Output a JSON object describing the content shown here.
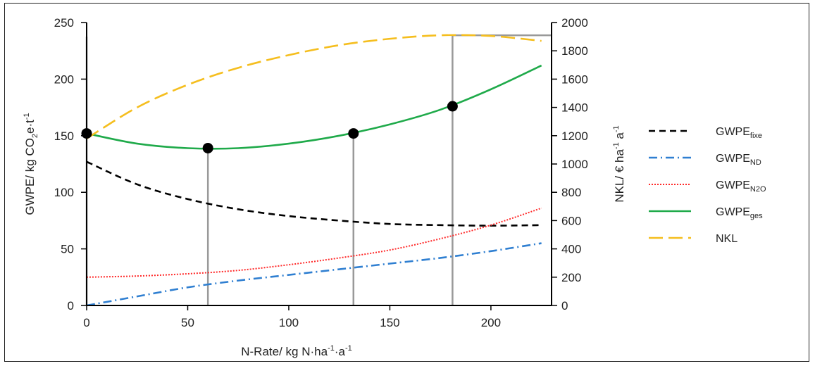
{
  "chart_data": {
    "type": "line",
    "xlabel": "N-Rate/ kg N·ha-1·a-1",
    "ylabel_left": "GWPE/ kg CO2e·t-1",
    "ylabel_right": "NKL/ € ha-1 a-1",
    "xlim": [
      0,
      230
    ],
    "ylim_left": [
      0,
      250
    ],
    "ylim_right": [
      0,
      2000
    ],
    "x_ticks": [
      "0",
      "50",
      "100",
      "150",
      "200"
    ],
    "y_left_ticks": [
      "0",
      "50",
      "100",
      "150",
      "200",
      "250"
    ],
    "y_right_ticks": [
      "0",
      "200",
      "400",
      "600",
      "800",
      "1000",
      "1200",
      "1400",
      "1600",
      "1800",
      "2000"
    ],
    "legend_position": "right",
    "grid": false,
    "series": [
      {
        "name": "GWPE_fixe",
        "label_base": "GWPE",
        "label_sub": "fixe",
        "axis": "left",
        "style": "dashed",
        "color": "#000000",
        "x": [
          0,
          25,
          50,
          75,
          100,
          125,
          150,
          175,
          200,
          225
        ],
        "y": [
          127,
          107,
          94,
          85,
          79,
          75,
          72,
          71,
          70.5,
          71
        ]
      },
      {
        "name": "GWPE_ND",
        "label_base": "GWPE",
        "label_sub": "ND",
        "axis": "left",
        "style": "dashdot",
        "color": "#2f7fd1",
        "x": [
          0,
          25,
          50,
          75,
          100,
          125,
          150,
          175,
          200,
          225
        ],
        "y": [
          0,
          8,
          16,
          22,
          27,
          32,
          37,
          42,
          48,
          55
        ]
      },
      {
        "name": "GWPE_N2O",
        "label_base": "GWPE",
        "label_sub": "N2O",
        "axis": "left",
        "style": "dotted",
        "color": "#ff2a2a",
        "x": [
          0,
          25,
          50,
          75,
          100,
          125,
          150,
          175,
          200,
          225
        ],
        "y": [
          25,
          26,
          28,
          31,
          36,
          42,
          49,
          59,
          71,
          86
        ]
      },
      {
        "name": "GWPE_ges",
        "label_base": "GWPE",
        "label_sub": "ges",
        "axis": "left",
        "style": "solid",
        "color": "#1faa4a",
        "x": [
          0,
          25,
          50,
          75,
          100,
          125,
          150,
          175,
          200,
          225
        ],
        "y": [
          152,
          143,
          139,
          139,
          143,
          150,
          160,
          173,
          191,
          212
        ]
      },
      {
        "name": "NKL",
        "label_base": "NKL",
        "label_sub": "",
        "axis": "right",
        "style": "longdash",
        "color": "#f5be1e",
        "x": [
          0,
          25,
          50,
          75,
          100,
          125,
          150,
          175,
          200,
          225
        ],
        "y": [
          1180,
          1400,
          1560,
          1680,
          1770,
          1840,
          1885,
          1910,
          1905,
          1870
        ]
      }
    ],
    "markers": [
      {
        "x": 0,
        "y": 152
      },
      {
        "x": 60,
        "y": 139
      },
      {
        "x": 132,
        "y": 152
      },
      {
        "x": 181,
        "y": 176
      }
    ],
    "vertical_lines": [
      {
        "x": 0,
        "y_top_nkl": 1900
      },
      {
        "x": 60,
        "y_top_nkl": 0
      },
      {
        "x": 132,
        "y_top_nkl": 0
      },
      {
        "x": 181,
        "y_top_nkl": 1910
      }
    ]
  }
}
